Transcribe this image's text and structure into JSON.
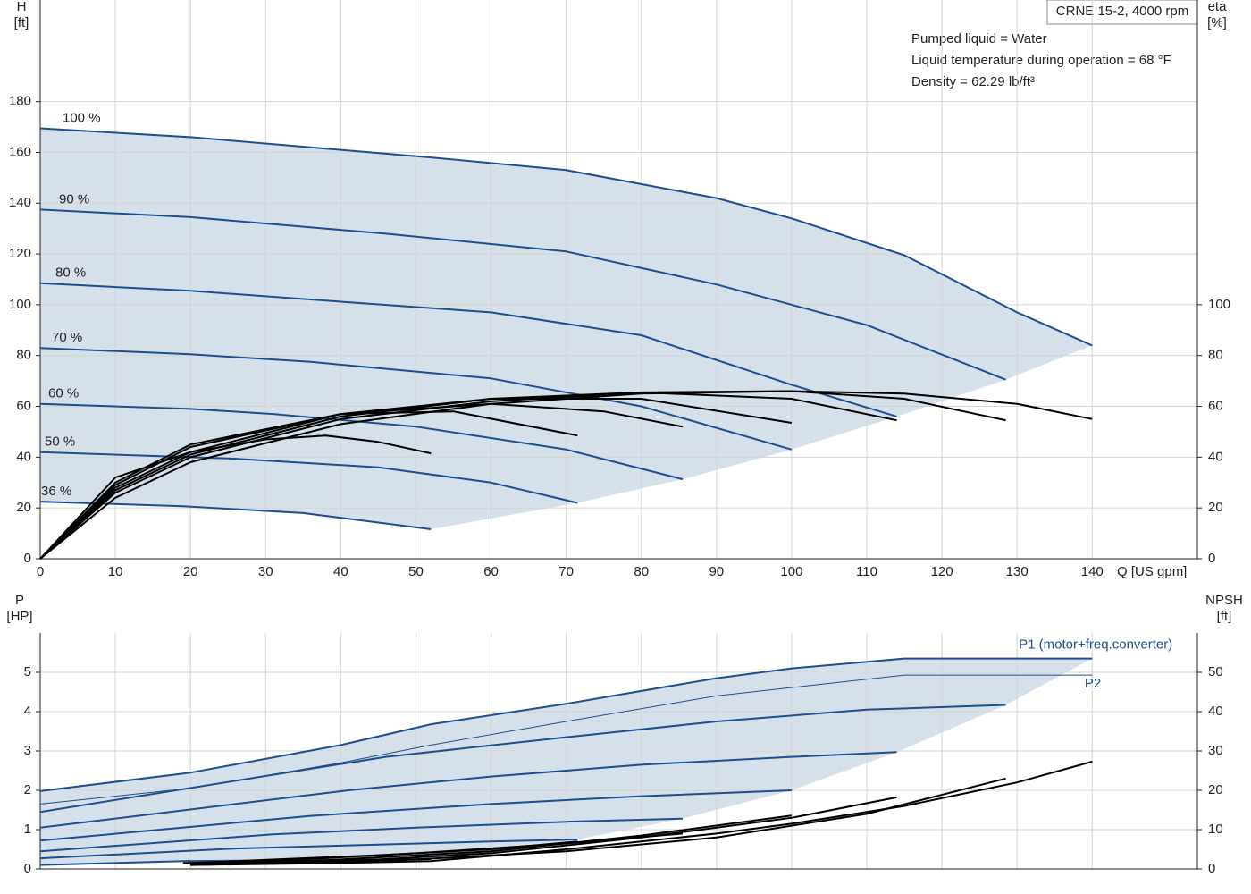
{
  "chart_data": [
    {
      "type": "line",
      "model": "CRNE 15-2, 4000 rpm",
      "annotations": [
        "Pumped liquid = Water",
        "Liquid temperature during operation = 68 °F",
        "Density = 62.29 lb/ft³"
      ],
      "y_label": "H",
      "y_unit": "[ft]",
      "y2_label": "eta",
      "y2_unit": "[%]",
      "x_label": "Q [US gpm]",
      "xlim": [
        0,
        154
      ],
      "xticks": [
        0,
        10,
        20,
        30,
        40,
        50,
        60,
        70,
        80,
        90,
        100,
        110,
        120,
        130,
        140
      ],
      "ylim": [
        0,
        220
      ],
      "yticks": [
        0,
        20,
        40,
        60,
        80,
        100,
        120,
        140,
        160,
        180
      ],
      "y2lim": [
        0,
        220
      ],
      "y2ticks": [
        0,
        20,
        40,
        60,
        80,
        100
      ],
      "grid": true,
      "series": [
        {
          "name": "100 %",
          "color": "#1f4e8c",
          "line_width": 2,
          "x": [
            0,
            20,
            40,
            52,
            70,
            90,
            100,
            115,
            130,
            140
          ],
          "values": [
            169.5,
            166,
            161,
            158,
            153,
            142,
            134,
            119.5,
            97,
            84
          ]
        },
        {
          "name": "90 %",
          "color": "#1f4e8c",
          "line_width": 2,
          "x": [
            0,
            20,
            46,
            70,
            90,
            110,
            128.5
          ],
          "values": [
            137.5,
            134.5,
            128,
            121,
            108,
            92,
            70.5
          ]
        },
        {
          "name": "80 %",
          "color": "#1f4e8c",
          "line_width": 2,
          "x": [
            0,
            20,
            41,
            60,
            80,
            100,
            114
          ],
          "values": [
            108.5,
            105.5,
            101,
            97,
            88,
            68.5,
            56
          ]
        },
        {
          "name": "70 %",
          "color": "#1f4e8c",
          "line_width": 2,
          "x": [
            0,
            20,
            36,
            60,
            80,
            100
          ],
          "values": [
            83,
            80.5,
            77.5,
            71,
            60,
            43
          ]
        },
        {
          "name": "60 %",
          "color": "#1f4e8c",
          "line_width": 2,
          "x": [
            0,
            20,
            31,
            50,
            70,
            85.5
          ],
          "values": [
            61,
            59,
            57,
            52,
            43,
            31.3
          ]
        },
        {
          "name": "50 %",
          "color": "#1f4e8c",
          "line_width": 2,
          "x": [
            0,
            26,
            45,
            60,
            71.5
          ],
          "values": [
            42,
            39.4,
            36,
            30,
            22
          ]
        },
        {
          "name": "36 %",
          "color": "#1f4e8c",
          "line_width": 2,
          "x": [
            0,
            19,
            35,
            52
          ],
          "values": [
            22.5,
            20.7,
            18,
            11.6
          ]
        },
        {
          "color": "#000000",
          "line_width": 2,
          "axis": "y2",
          "x": [
            0,
            10,
            20,
            40,
            60,
            80,
            100,
            115,
            130,
            140
          ],
          "values": [
            0,
            24,
            38,
            53,
            61,
            65,
            66,
            65,
            61,
            55
          ]
        },
        {
          "color": "#000000",
          "line_width": 2,
          "axis": "y2",
          "x": [
            0,
            10,
            20,
            40,
            60,
            80,
            100,
            115,
            128.5
          ],
          "values": [
            0,
            26,
            40,
            55,
            62,
            65.5,
            66,
            63,
            54.5
          ]
        },
        {
          "color": "#000000",
          "line_width": 2,
          "axis": "y2",
          "x": [
            0,
            10,
            20,
            40,
            60,
            80,
            100,
            114
          ],
          "values": [
            0,
            27,
            41,
            56,
            63,
            65.5,
            63,
            54.5
          ]
        },
        {
          "color": "#000000",
          "line_width": 2,
          "axis": "y2",
          "x": [
            0,
            10,
            20,
            40,
            60,
            80,
            100
          ],
          "values": [
            0,
            28,
            42,
            57,
            63,
            63,
            53.5
          ]
        },
        {
          "color": "#000000",
          "line_width": 2,
          "axis": "y2",
          "x": [
            0,
            10,
            20,
            40,
            60,
            75,
            85.5
          ],
          "values": [
            0,
            29,
            44,
            57,
            61,
            58,
            52
          ]
        },
        {
          "color": "#000000",
          "line_width": 2,
          "axis": "y2",
          "x": [
            0,
            10,
            20,
            40,
            55,
            71.5
          ],
          "values": [
            0,
            30,
            45,
            57,
            58,
            48.5
          ]
        },
        {
          "color": "#000000",
          "line_width": 2,
          "axis": "y2",
          "x": [
            0,
            10,
            20,
            30,
            38,
            45,
            52
          ],
          "values": [
            0,
            32,
            42,
            47,
            48.5,
            46,
            41.5
          ]
        }
      ]
    },
    {
      "type": "line",
      "y_label": "P",
      "y_unit": "[HP]",
      "y2_label": "NPSH",
      "y2_unit": "[ft]",
      "xlim": [
        0,
        154
      ],
      "ylim": [
        0,
        6
      ],
      "yticks": [
        0,
        1,
        2,
        3,
        4,
        5
      ],
      "y2lim": [
        0,
        60
      ],
      "y2ticks": [
        0,
        10,
        20,
        30,
        40,
        50
      ],
      "grid": true,
      "series": [
        {
          "name": "P1 (motor+freq.converter)",
          "color": "#1f4e8c",
          "line_width": 2,
          "x": [
            0,
            20,
            40,
            52,
            70,
            90,
            100,
            115,
            140
          ],
          "values": [
            1.98,
            2.45,
            3.15,
            3.68,
            4.2,
            4.85,
            5.1,
            5.35,
            5.35
          ]
        },
        {
          "name": "P2",
          "color": "#1f4e8c",
          "line_width": 1,
          "x": [
            0,
            20,
            40,
            52,
            70,
            90,
            115,
            140
          ],
          "values": [
            1.65,
            2.05,
            2.7,
            3.15,
            3.75,
            4.4,
            4.93,
            4.93
          ]
        },
        {
          "color": "#1f4e8c",
          "line_width": 2,
          "x": [
            0,
            46,
            70,
            90,
            110,
            128.5
          ],
          "values": [
            1.45,
            2.85,
            3.35,
            3.75,
            4.05,
            4.17
          ]
        },
        {
          "color": "#1f4e8c",
          "line_width": 2,
          "x": [
            0,
            41,
            60,
            80,
            100,
            114
          ],
          "values": [
            1.05,
            2.0,
            2.35,
            2.65,
            2.85,
            2.97
          ]
        },
        {
          "color": "#1f4e8c",
          "line_width": 2,
          "x": [
            0,
            36,
            60,
            80,
            100
          ],
          "values": [
            0.72,
            1.35,
            1.65,
            1.85,
            2.0
          ]
        },
        {
          "color": "#1f4e8c",
          "line_width": 2,
          "x": [
            0,
            31,
            50,
            70,
            85.5
          ],
          "values": [
            0.45,
            0.88,
            1.05,
            1.2,
            1.28
          ]
        },
        {
          "color": "#1f4e8c",
          "line_width": 2,
          "x": [
            0,
            26,
            45,
            60,
            71.5
          ],
          "values": [
            0.27,
            0.52,
            0.62,
            0.7,
            0.75
          ]
        },
        {
          "color": "#1f4e8c",
          "line_width": 2,
          "x": [
            0,
            19,
            35,
            52
          ],
          "values": [
            0.1,
            0.2,
            0.22,
            0.25
          ]
        },
        {
          "color": "#000000",
          "line_width": 2,
          "axis": "y2",
          "x": [
            20,
            40,
            52,
            70,
            90,
            100,
            115,
            130,
            140
          ],
          "values": [
            1,
            1.5,
            2,
            5,
            9,
            11.5,
            16,
            22,
            27.3
          ]
        },
        {
          "color": "#000000",
          "line_width": 2,
          "axis": "y2",
          "x": [
            20,
            46,
            70,
            90,
            110,
            128.5
          ],
          "values": [
            1,
            2,
            4.5,
            8,
            14,
            23
          ]
        },
        {
          "color": "#000000",
          "line_width": 2,
          "axis": "y2",
          "x": [
            20,
            41,
            60,
            80,
            100,
            114
          ],
          "values": [
            1.2,
            2,
            4,
            8,
            13,
            18.2
          ]
        },
        {
          "color": "#000000",
          "line_width": 2,
          "axis": "y2",
          "x": [
            20,
            36,
            60,
            80,
            100
          ],
          "values": [
            1.3,
            2,
            4.5,
            8.5,
            13.6
          ]
        },
        {
          "color": "#000000",
          "line_width": 2,
          "axis": "y2",
          "x": [
            20,
            31,
            50,
            70,
            85.5
          ],
          "values": [
            1.4,
            2,
            4,
            6.5,
            9
          ]
        },
        {
          "color": "#000000",
          "line_width": 2,
          "axis": "y2",
          "x": [
            20,
            26,
            45,
            60,
            71.5
          ],
          "values": [
            1.5,
            2,
            3.5,
            5,
            7
          ]
        },
        {
          "color": "#000000",
          "line_width": 2,
          "axis": "y2",
          "x": [
            19,
            35,
            52
          ],
          "values": [
            1.5,
            2,
            2.5
          ]
        }
      ]
    }
  ]
}
